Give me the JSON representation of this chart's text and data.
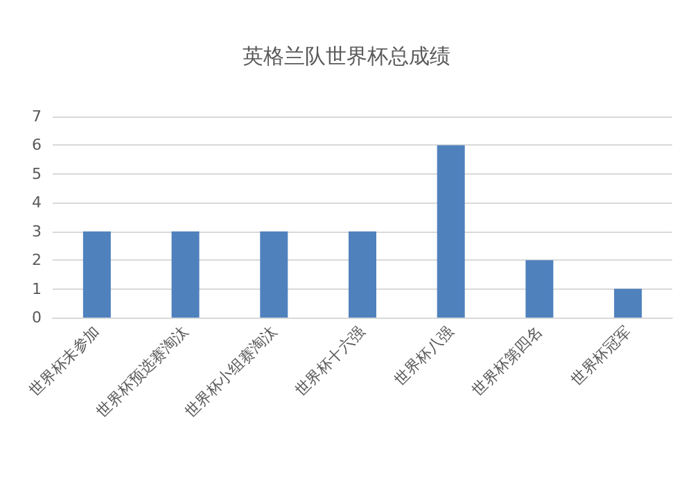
{
  "chart_data": {
    "type": "bar",
    "title": "英格兰队世界杯总成绩",
    "categories": [
      "世界杯未参加",
      "世界杯预选赛淘汰",
      "世界杯小组赛淘汰",
      "世界杯十六强",
      "世界杯八强",
      "世界杯第四名",
      "世界杯冠军"
    ],
    "values": [
      3,
      3,
      3,
      3,
      6,
      2,
      1
    ],
    "color": "#4f81bd",
    "ylim": [
      0,
      7
    ],
    "yticks": [
      0,
      1,
      2,
      3,
      4,
      5,
      6,
      7
    ],
    "grid": "y"
  }
}
